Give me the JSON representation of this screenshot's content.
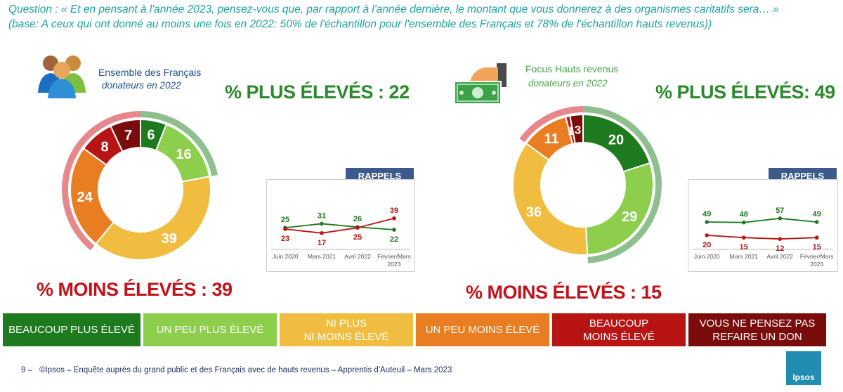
{
  "question": {
    "line1": "Question : « Et en pensant à l'année 2023, pensez-vous que, par rapport à l'année dernière, le montant que vous donnerez à des organismes caritatifs sera… »",
    "line2": "(base: A ceux qui ont donné au moins une fois en 2022: 50% de l'échantillon pour l'ensemble des Français et 78% de l'échantillon hauts revenus))"
  },
  "colors": {
    "beaucoup_plus": "#1e7a1e",
    "un_peu_plus": "#8dcf4c",
    "ni_plus": "#f0bd40",
    "un_peu_moins": "#e87d22",
    "beaucoup_moins": "#b81414",
    "ne_pense_pas": "#7a0c0c",
    "arc_plus": "#8fbf8f",
    "arc_moins": "#e5878b"
  },
  "legend": [
    {
      "label": "BEAUCOUP PLUS ÉLEVÉ",
      "color": "#1e7a1e"
    },
    {
      "label": "UN PEU PLUS ÉLEVÉ",
      "color": "#8dcf4c"
    },
    {
      "label": "NI PLUS\nNI MOINS ÉLEVÉ",
      "color": "#f0bd40"
    },
    {
      "label": "UN PEU MOINS ÉLEVÉ",
      "color": "#e87d22"
    },
    {
      "label": "BEAUCOUP\nMOINS ÉLEVÉ",
      "color": "#b81414"
    },
    {
      "label": "VOUS NE PENSEZ PAS\nREFAIRE UN DON",
      "color": "#7a0c0c"
    }
  ],
  "panels": {
    "left": {
      "title": "Ensemble des Français",
      "subtitle": "donateurs en 2022",
      "plus_label": "% PLUS ÉLEVÉS : 22",
      "moins_label": "% MOINS ÉLEVÉS : 39",
      "rappels": "RAPPELS"
    },
    "right": {
      "title": "Focus Hauts revenus",
      "subtitle": "donateurs en 2022",
      "plus_label": "% PLUS ÉLEVÉS: 49",
      "moins_label": "% MOINS ÉLEVÉS  : 15",
      "rappels": "RAPPELS"
    }
  },
  "chart_data": [
    {
      "type": "pie",
      "title": "Ensemble des Français",
      "categories": [
        "BEAUCOUP PLUS ÉLEVÉ",
        "UN PEU PLUS ÉLEVÉ",
        "NI PLUS NI MOINS ÉLEVÉ",
        "UN PEU MOINS ÉLEVÉ",
        "BEAUCOUP MOINS ÉLEVÉ",
        "VOUS NE PENSEZ PAS REFAIRE UN DON"
      ],
      "values": [
        6,
        16,
        39,
        24,
        8,
        7
      ],
      "labels": [
        "6",
        "16",
        "39",
        "24",
        "8",
        "7"
      ]
    },
    {
      "type": "pie",
      "title": "Focus Hauts revenus",
      "categories": [
        "BEAUCOUP PLUS ÉLEVÉ",
        "UN PEU PLUS ÉLEVÉ",
        "NI PLUS NI MOINS ÉLEVÉ",
        "UN PEU MOINS ÉLEVÉ",
        "BEAUCOUP MOINS ÉLEVÉ",
        "VOUS NE PENSEZ PAS REFAIRE UN DON"
      ],
      "values": [
        20,
        29,
        36,
        11,
        1,
        3
      ],
      "labels": [
        "20",
        "29",
        "36",
        "11",
        "1",
        "3"
      ]
    },
    {
      "type": "line",
      "title": "RAPPELS",
      "categories": [
        "Juin 2020",
        "Mars 2021",
        "Avril 2022",
        "Février/Mars 2023"
      ],
      "series": [
        {
          "values": [
            25,
            31,
            26,
            22
          ],
          "color": "#1e7a1e"
        },
        {
          "values": [
            23,
            17,
            25,
            39
          ],
          "color": "#b81414"
        }
      ]
    },
    {
      "type": "line",
      "title": "RAPPELS",
      "categories": [
        "Juin 2020",
        "Mars 2021",
        "Avril 2022",
        "Février/Mars 2023"
      ],
      "series": [
        {
          "values": [
            49,
            48,
            57,
            49
          ],
          "color": "#1e7a1e"
        },
        {
          "values": [
            20,
            15,
            12,
            15
          ],
          "color": "#b81414"
        }
      ]
    }
  ],
  "footer": {
    "page": "9 –",
    "text": "©Ipsos – Enquête auprès du grand public et des Français avec de hauts revenus – Apprentis d'Auteuil – Mars 2023",
    "logo": "Ipsos"
  }
}
